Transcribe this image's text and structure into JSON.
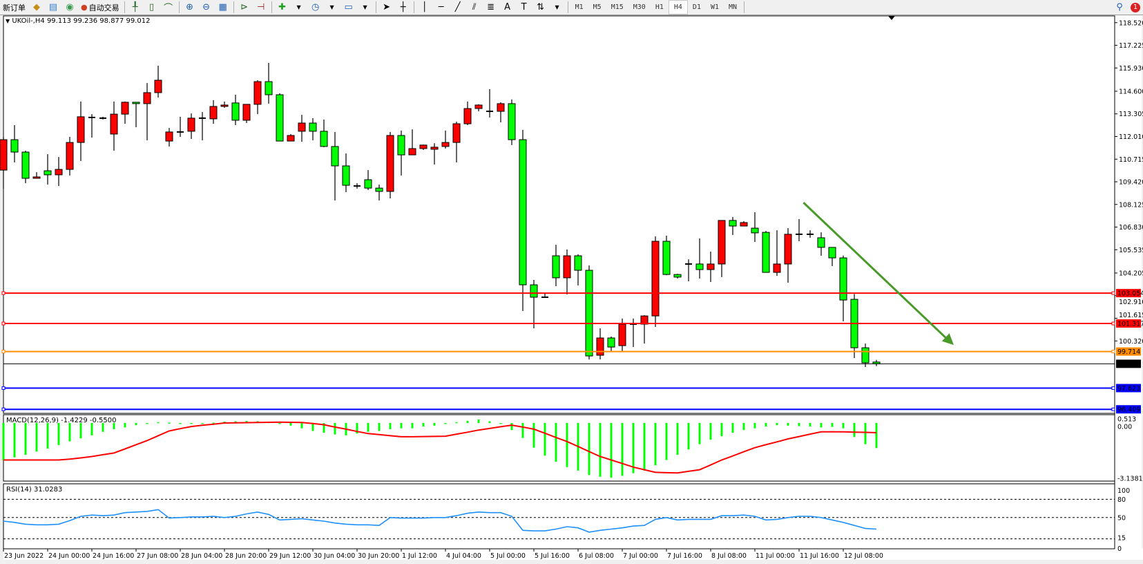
{
  "toolbar": {
    "new_order": "新订单",
    "auto_trading": "自动交易",
    "timeframes": [
      "M1",
      "M5",
      "M15",
      "M30",
      "H1",
      "H4",
      "D1",
      "W1",
      "MN"
    ],
    "active_timeframe": "H4",
    "notification_count": "1",
    "icons": [
      "gold-icon",
      "server-icon",
      "signal-icon",
      "bar-chart-icon",
      "candle-chart-icon",
      "line-chart-icon",
      "zoom-in-icon",
      "zoom-out-icon",
      "tile-windows-icon",
      "auto-scroll-icon",
      "chart-shift-icon",
      "indicators-icon",
      "periods-icon",
      "templates-icon",
      "cursor-icon",
      "crosshair-icon",
      "vertical-line-icon",
      "horizontal-line-icon",
      "trendline-icon",
      "equidistant-channel-icon",
      "fibonacci-icon",
      "text-icon",
      "text-label-icon",
      "arrows-icon",
      "search-icon"
    ]
  },
  "chart": {
    "symbol_info": "UKOil-,H4  99.113 99.236 98.877 99.012",
    "macd_label": "MACD(12,26,9) -1.4229 -0.5500",
    "rsi_label": "RSI(14) 31.0283",
    "colors": {
      "bull": "#ff0000",
      "bear": "#00ff00",
      "macd_hist": "#00ff00",
      "macd_signal": "#ff0000",
      "rsi": "#1e90ff",
      "trend_arrow": "#4a9a2a"
    }
  },
  "chart_data": [
    {
      "type": "candlestick",
      "symbol": "UKOil-",
      "timeframe": "H4",
      "ylim": [
        96.2,
        118.9
      ],
      "price_ticks": [
        "118.520",
        "117.225",
        "115.930",
        "114.600",
        "113.305",
        "112.010",
        "110.715",
        "109.420",
        "108.125",
        "106.830",
        "105.535",
        "104.205",
        "102.910",
        "101.615",
        "100.320"
      ],
      "time_labels": [
        "23 Jun 2022",
        "24 Jun 00:00",
        "24 Jun 16:00",
        "27 Jun 08:00",
        "28 Jun 04:00",
        "28 Jun 20:00",
        "29 Jun 12:00",
        "30 Jun 04:00",
        "30 Jun 20:00",
        "1 Jul 12:00",
        "4 Jul 04:00",
        "5 Jul 00:00",
        "5 Jul 16:00",
        "6 Jul 08:00",
        "7 Jul 00:00",
        "7 Jul 16:00",
        "8 Jul 08:00",
        "11 Jul 00:00",
        "11 Jul 16:00",
        "12 Jul 08:00"
      ],
      "ohlc": [
        [
          110.09,
          111.99,
          109.03,
          111.83
        ],
        [
          111.83,
          112.66,
          110.53,
          111.12
        ],
        [
          111.12,
          111.2,
          109.34,
          109.62
        ],
        [
          109.62,
          109.97,
          109.62,
          109.7
        ],
        [
          110.05,
          111.0,
          109.26,
          109.82
        ],
        [
          109.82,
          110.84,
          109.18,
          110.13
        ],
        [
          110.13,
          111.99,
          109.78,
          111.67
        ],
        [
          111.67,
          114.01,
          110.61,
          113.14
        ],
        [
          113.1,
          113.29,
          111.95,
          113.1
        ],
        [
          113.06,
          113.14,
          112.98,
          113.06
        ],
        [
          112.15,
          114.01,
          111.2,
          113.29
        ],
        [
          113.29,
          114.01,
          112.74,
          113.97
        ],
        [
          113.97,
          113.97,
          112.54,
          113.89
        ],
        [
          113.89,
          115.07,
          111.79,
          114.52
        ],
        [
          114.52,
          116.06,
          114.24,
          115.23
        ],
        [
          111.75,
          112.5,
          111.44,
          112.27
        ],
        [
          112.27,
          113.14,
          111.99,
          112.27
        ],
        [
          112.31,
          113.33,
          111.87,
          113.06
        ],
        [
          113.06,
          113.41,
          111.79,
          113.06
        ],
        [
          113.02,
          114.09,
          112.74,
          113.73
        ],
        [
          113.73,
          114.01,
          113.65,
          113.81
        ],
        [
          113.93,
          114.4,
          112.66,
          112.94
        ],
        [
          112.94,
          113.85,
          112.78,
          113.85
        ],
        [
          113.85,
          115.23,
          113.29,
          115.15
        ],
        [
          115.15,
          116.22,
          113.89,
          114.4
        ],
        [
          114.4,
          114.48,
          111.75,
          111.75
        ],
        [
          111.75,
          112.15,
          111.75,
          112.07
        ],
        [
          112.31,
          113.25,
          111.71,
          112.78
        ],
        [
          112.78,
          113.06,
          111.79,
          112.31
        ],
        [
          112.31,
          112.98,
          111.4,
          111.44
        ],
        [
          111.44,
          112.27,
          108.35,
          110.33
        ],
        [
          110.33,
          111.04,
          108.83,
          109.22
        ],
        [
          109.18,
          109.34,
          109.03,
          109.18
        ],
        [
          109.54,
          110.09,
          108.95,
          109.06
        ],
        [
          109.06,
          109.26,
          108.35,
          108.87
        ],
        [
          108.87,
          112.27,
          108.47,
          112.07
        ],
        [
          112.07,
          112.35,
          109.78,
          110.96
        ],
        [
          110.96,
          112.42,
          110.96,
          111.32
        ],
        [
          111.32,
          111.55,
          111.24,
          111.52
        ],
        [
          111.28,
          111.63,
          110.41,
          111.4
        ],
        [
          111.44,
          112.35,
          111.32,
          111.67
        ],
        [
          111.67,
          112.86,
          110.53,
          112.74
        ],
        [
          112.74,
          114.01,
          112.66,
          113.61
        ],
        [
          113.61,
          113.85,
          113.45,
          113.81
        ],
        [
          113.45,
          114.72,
          113.1,
          113.45
        ],
        [
          113.45,
          113.97,
          112.82,
          113.89
        ],
        [
          113.89,
          114.13,
          111.52,
          111.83
        ],
        [
          111.83,
          112.39,
          102.03,
          103.53
        ],
        [
          103.53,
          103.81,
          101.04,
          102.82
        ],
        [
          102.82,
          103.06,
          102.82,
          102.82
        ],
        [
          105.19,
          105.82,
          103.45,
          103.93
        ],
        [
          103.93,
          105.55,
          102.98,
          105.19
        ],
        [
          105.19,
          105.27,
          103.49,
          104.36
        ],
        [
          104.36,
          104.64,
          99.26,
          99.46
        ],
        [
          99.5,
          101.04,
          99.26,
          100.49
        ],
        [
          100.49,
          100.57,
          99.74,
          99.97
        ],
        [
          100.05,
          101.6,
          99.74,
          101.28
        ],
        [
          101.28,
          101.6,
          99.97,
          101.28
        ],
        [
          101.28,
          101.79,
          100.17,
          101.75
        ],
        [
          101.75,
          106.3,
          101.12,
          106.02
        ],
        [
          106.02,
          106.34,
          104.08,
          104.12
        ],
        [
          104.12,
          104.16,
          103.89,
          103.97
        ],
        [
          104.72,
          104.99,
          103.73,
          104.72
        ],
        [
          104.72,
          106.18,
          103.89,
          104.4
        ],
        [
          104.4,
          105.43,
          103.69,
          104.72
        ],
        [
          104.72,
          107.21,
          103.97,
          107.21
        ],
        [
          107.21,
          107.41,
          106.38,
          106.89
        ],
        [
          106.89,
          107.17,
          106.89,
          107.09
        ],
        [
          106.77,
          107.68,
          105.98,
          106.5
        ],
        [
          106.53,
          106.61,
          104.24,
          104.24
        ],
        [
          104.24,
          106.65,
          104.04,
          104.72
        ],
        [
          104.72,
          106.77,
          103.65,
          106.42
        ],
        [
          106.42,
          107.29,
          106.02,
          106.42
        ],
        [
          106.42,
          106.65,
          106.22,
          106.42
        ],
        [
          106.22,
          106.53,
          105.19,
          105.67
        ],
        [
          105.67,
          105.67,
          104.6,
          105.07
        ],
        [
          105.07,
          105.2,
          101.44,
          102.66
        ],
        [
          102.7,
          103.0,
          99.34,
          99.93
        ],
        [
          99.93,
          100.17,
          98.83,
          99.07
        ],
        [
          99.113,
          99.236,
          98.877,
          99.012
        ]
      ],
      "horizontal_levels": [
        {
          "price": "103.054",
          "color": "#ff0000"
        },
        {
          "price": "101.317",
          "color": "#ff0000"
        },
        {
          "price": "99.714",
          "color": "#ff8c00"
        },
        {
          "price": "99.012",
          "color": "#000000"
        },
        {
          "price": "97.623",
          "color": "#0000ff"
        },
        {
          "price": "96.409",
          "color": "#0000ff"
        }
      ],
      "trend_arrow": {
        "from_bar": 72.4,
        "from_price": 108.23,
        "to_bar": 86,
        "to_price": 100.09,
        "color": "#4a9a2a"
      }
    },
    {
      "type": "bar+line",
      "name": "MACD(12,26,9)",
      "scale_labels": [
        "0.513",
        "0.00",
        "-3.1381"
      ],
      "ylim": [
        -3.1381,
        0.513
      ],
      "main": [
        -2.12,
        -1.95,
        -1.8,
        -1.62,
        -1.45,
        -1.25,
        -1.04,
        -0.87,
        -0.7,
        -0.5,
        -0.35,
        -0.25,
        -0.12,
        -0.05,
        0.05,
        0.02,
        -0.02,
        -0.03,
        -0.04,
        0.02,
        0.08,
        0.1,
        0.12,
        0.1,
        0.05,
        -0.05,
        -0.15,
        -0.3,
        -0.45,
        -0.55,
        -0.65,
        -0.7,
        -0.6,
        -0.5,
        -0.45,
        -0.35,
        -0.3,
        -0.3,
        -0.2,
        -0.15,
        -0.05,
        0.05,
        0.12,
        0.2,
        0.1,
        -0.05,
        -0.4,
        -0.85,
        -1.4,
        -1.85,
        -2.2,
        -2.5,
        -2.7,
        -2.95,
        -3.05,
        -3.1,
        -3.0,
        -2.85,
        -2.7,
        -2.4,
        -2.1,
        -1.8,
        -1.5,
        -1.2,
        -0.95,
        -0.75,
        -0.55,
        -0.4,
        -0.3,
        -0.2,
        -0.12,
        -0.15,
        -0.18,
        -0.2,
        -0.25,
        -0.22,
        -0.3,
        -0.8,
        -1.2,
        -1.4229
      ],
      "signal": [
        -2.1,
        -2.1,
        -2.1,
        -2.1,
        -2.1,
        -2.1,
        -2.05,
        -1.98,
        -1.9,
        -1.8,
        -1.7,
        -1.47,
        -1.23,
        -1.0,
        -0.72,
        -0.45,
        -0.32,
        -0.2,
        -0.13,
        -0.07,
        0.0,
        0.01,
        0.02,
        0.03,
        0.04,
        0.05,
        0.04,
        0.03,
        -0.03,
        -0.1,
        -0.23,
        -0.35,
        -0.48,
        -0.6,
        -0.66,
        -0.72,
        -0.78,
        -0.78,
        -0.77,
        -0.76,
        -0.75,
        -0.63,
        -0.52,
        -0.4,
        -0.31,
        -0.21,
        -0.12,
        -0.23,
        -0.35,
        -0.58,
        -0.82,
        -1.05,
        -1.33,
        -1.62,
        -1.9,
        -2.1,
        -2.3,
        -2.5,
        -2.65,
        -2.8,
        -2.82,
        -2.83,
        -2.74,
        -2.65,
        -2.38,
        -2.1,
        -1.87,
        -1.63,
        -1.4,
        -1.23,
        -1.07,
        -0.9,
        -0.77,
        -0.63,
        -0.5,
        -0.5,
        -0.5,
        -0.52,
        -0.53,
        -0.55
      ]
    },
    {
      "type": "line",
      "name": "RSI(14)",
      "scale_labels": [
        "100",
        "80",
        "50",
        "15",
        "0"
      ],
      "levels": [
        80,
        50,
        15
      ],
      "ylim": [
        0,
        100
      ],
      "values": [
        44,
        42,
        39,
        38,
        38,
        39,
        45,
        52,
        54,
        53,
        54,
        58,
        59,
        60,
        63,
        49,
        50,
        51,
        51,
        52,
        50,
        52,
        56,
        59,
        55,
        46,
        47,
        48,
        46,
        44,
        41,
        39,
        38,
        38,
        37,
        50,
        49,
        49,
        49,
        50,
        50,
        53,
        57,
        59,
        58,
        58,
        52,
        29,
        28,
        28,
        31,
        35,
        33,
        26,
        29,
        31,
        33,
        36,
        37,
        47,
        50,
        46,
        47,
        47,
        47,
        53,
        53,
        54,
        52,
        46,
        47,
        50,
        52,
        52,
        50,
        46,
        42,
        37,
        32,
        31.0283
      ]
    }
  ]
}
